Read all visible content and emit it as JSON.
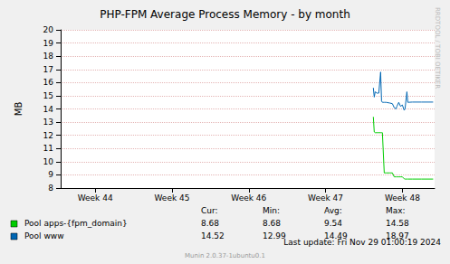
{
  "chart_data": {
    "type": "line",
    "title": "PHP-FPM Average Process Memory - by month",
    "y_label": "MB",
    "x": [
      47.622,
      47.634,
      47.646,
      47.67,
      47.693,
      47.717,
      47.729,
      47.74,
      47.764,
      47.788,
      47.835,
      47.87,
      47.894,
      47.917,
      47.929,
      47.953,
      47.976,
      48.0,
      48.024,
      48.035,
      48.059,
      48.071,
      48.13,
      48.248,
      48.401
    ],
    "xlim": [
      43.55,
      48.42
    ],
    "xticks": [
      {
        "value": 44,
        "label": "Week 44"
      },
      {
        "value": 45,
        "label": "Week 45"
      },
      {
        "value": 46,
        "label": "Week 46"
      },
      {
        "value": 47,
        "label": "Week 47"
      },
      {
        "value": 48,
        "label": "Week 48"
      }
    ],
    "ylim": [
      8,
      20
    ],
    "yticks": [
      8,
      9,
      10,
      11,
      12,
      13,
      14,
      15,
      16,
      17,
      18,
      19,
      20
    ],
    "grid": true,
    "stats_columns": [
      "Cur:",
      "Min:",
      "Avg:",
      "Max:"
    ],
    "series": [
      {
        "name": "Pool apps-{fpm_domain}",
        "color": "#00cc00",
        "values": [
          13.4,
          12.25,
          12.2,
          12.2,
          12.2,
          12.2,
          12.2,
          12.2,
          9.15,
          9.15,
          9.15,
          9.15,
          8.85,
          8.85,
          8.85,
          8.85,
          8.85,
          8.85,
          8.7,
          8.68,
          8.68,
          8.68,
          8.68,
          8.68,
          8.68
        ],
        "stats": [
          8.68,
          8.68,
          9.54,
          14.58
        ]
      },
      {
        "name": "Pool www",
        "color": "#0066b3",
        "values": [
          15.6,
          14.9,
          15.3,
          15.2,
          15.2,
          16.8,
          14.6,
          14.5,
          14.5,
          14.5,
          14.45,
          14.4,
          14.1,
          14.0,
          14.2,
          14.5,
          14.2,
          14.3,
          13.9,
          14.0,
          15.3,
          14.5,
          14.52,
          14.52,
          14.52
        ],
        "stats": [
          14.52,
          12.99,
          14.49,
          18.97
        ]
      }
    ],
    "last_update": "Last update: Fri Nov 29 01:00:19 2024",
    "credit": "Munin 2.0.37-1ubuntu0.1",
    "side_text": "RRDTOOL / TOBI OETIKER"
  }
}
